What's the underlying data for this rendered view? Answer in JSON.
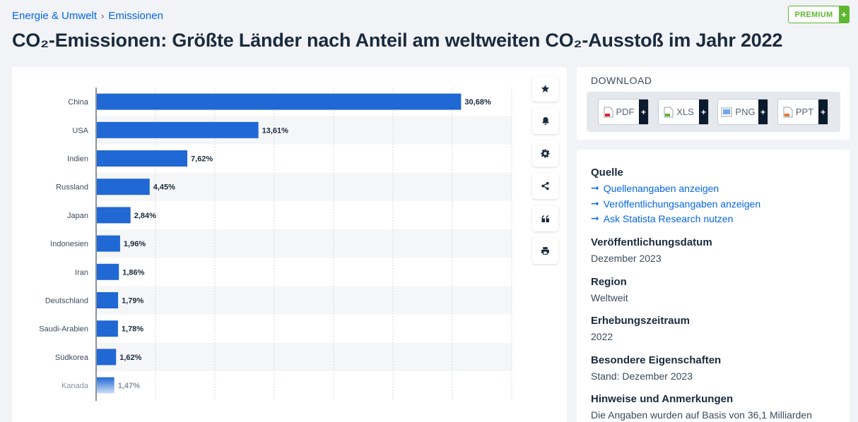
{
  "breadcrumb": {
    "item1": "Energie & Umwelt",
    "sep": "›",
    "item2": "Emissionen"
  },
  "premium": {
    "label": "PREMIUM",
    "plus": "+"
  },
  "title": "CO₂-Emissionen: Größte Länder nach Anteil am weltweiten CO₂-Ausstoß im Jahr 2022",
  "tools": [
    {
      "icon": "star-icon"
    },
    {
      "icon": "bell-icon"
    },
    {
      "icon": "gear-icon"
    },
    {
      "icon": "share-icon"
    },
    {
      "icon": "quote-icon"
    },
    {
      "icon": "print-icon"
    }
  ],
  "download": {
    "header": "DOWNLOAD",
    "buttons": [
      {
        "label": "PDF",
        "plus": "+",
        "icon": "pdf-file-icon"
      },
      {
        "label": "XLS",
        "plus": "+",
        "icon": "xls-file-icon"
      },
      {
        "label": "PNG",
        "plus": "+",
        "icon": "png-file-icon"
      },
      {
        "label": "PPT",
        "plus": "+",
        "icon": "ppt-file-icon"
      }
    ]
  },
  "info": {
    "source_heading": "Quelle",
    "links": [
      "Quellenangaben anzeigen",
      "Veröffentlichungsangaben anzeigen",
      "Ask Statista Research nutzen"
    ],
    "pubdate_heading": "Veröffentlichungsdatum",
    "pubdate_value": "Dezember 2023",
    "region_heading": "Region",
    "region_value": "Weltweit",
    "period_heading": "Erhebungszeitraum",
    "period_value": "2022",
    "special_heading": "Besondere Eigenschaften",
    "special_value": "Stand: Dezember 2023",
    "notes_heading": "Hinweise und Anmerkungen",
    "notes_value": "Die Angaben wurden auf Basis von 36,1 Milliarden"
  },
  "colors": {
    "bar": "#2068d4",
    "accent": "#0666e5",
    "premium": "#5eb731"
  },
  "chart_data": {
    "type": "bar",
    "orientation": "horizontal",
    "categories": [
      "China",
      "USA",
      "Indien",
      "Russland",
      "Japan",
      "Indonesien",
      "Iran",
      "Deutschland",
      "Saudi-Arabien",
      "Südkorea",
      "Kanada"
    ],
    "values": [
      30.68,
      13.61,
      7.62,
      4.45,
      2.84,
      1.96,
      1.86,
      1.79,
      1.78,
      1.62,
      1.47
    ],
    "value_labels": [
      "30,68%",
      "13,61%",
      "7,62%",
      "4,45%",
      "2,84%",
      "1,96%",
      "1,86%",
      "1,79%",
      "1,78%",
      "1,62%",
      "1,47%"
    ],
    "xlim": [
      0,
      35
    ],
    "grid": true,
    "title": "",
    "xlabel": "",
    "ylabel": ""
  }
}
